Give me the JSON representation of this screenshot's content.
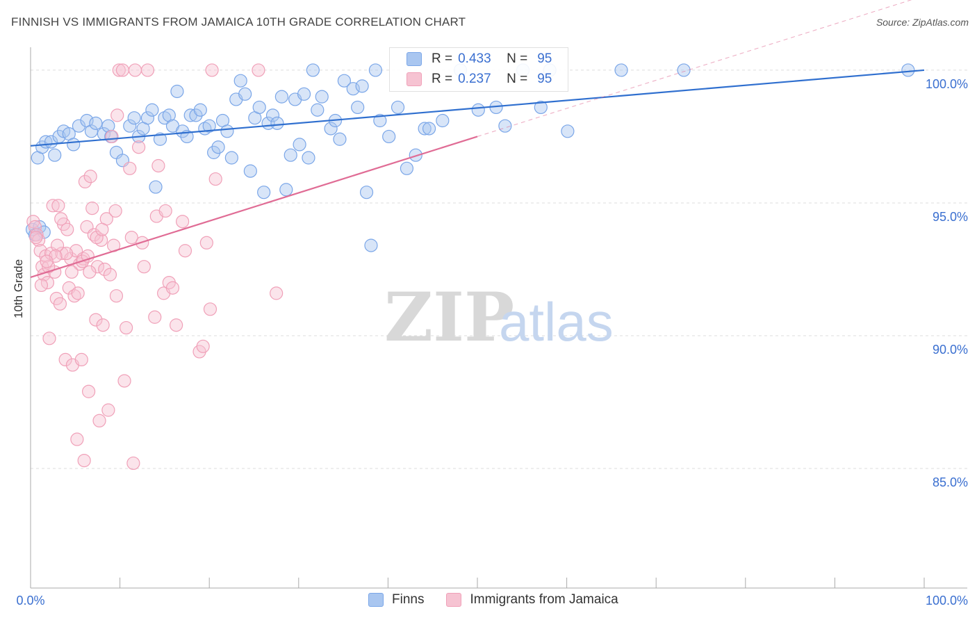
{
  "title": "FINNISH VS IMMIGRANTS FROM JAMAICA 10TH GRADE CORRELATION CHART",
  "source": "Source: ZipAtlas.com",
  "watermark": {
    "zip": "ZIP",
    "atlas": "atlas"
  },
  "legend": {
    "r_label": "R =",
    "n_label": "N =",
    "series": [
      {
        "name": "Finns",
        "r": "0.433",
        "n": "95",
        "color": "#7aa6e8",
        "fill": "#a9c6f0",
        "line": "#2f6fcf"
      },
      {
        "name": "Immigrants from Jamaica",
        "r": "0.237",
        "n": "95",
        "color": "#f0a0b8",
        "fill": "#f6c3d2",
        "line": "#e06c95"
      }
    ]
  },
  "chart_data": {
    "type": "scatter",
    "title": "FINNISH VS IMMIGRANTS FROM JAMAICA 10TH GRADE CORRELATION CHART",
    "xlabel": "",
    "ylabel": "10th Grade",
    "xlim": [
      0,
      100
    ],
    "ylim": [
      80.5,
      100.6
    ],
    "x_tick_labels": [
      "0.0%",
      "100.0%"
    ],
    "y_ticks": [
      85,
      90,
      95,
      100
    ],
    "y_tick_labels": [
      "85.0%",
      "90.0%",
      "95.0%",
      "100.0%"
    ],
    "grid": true,
    "series": [
      {
        "name": "Finns",
        "trend": {
          "x": [
            0,
            100
          ],
          "y": [
            97.15,
            100.0
          ]
        },
        "points": [
          [
            0.8,
            96.7
          ],
          [
            1.3,
            97.1
          ],
          [
            1.7,
            97.3
          ],
          [
            2.3,
            97.3
          ],
          [
            2.7,
            96.8
          ],
          [
            3.2,
            97.5
          ],
          [
            3.7,
            97.7
          ],
          [
            4.3,
            97.6
          ],
          [
            4.8,
            97.2
          ],
          [
            5.4,
            97.9
          ],
          [
            6.3,
            98.1
          ],
          [
            6.8,
            97.7
          ],
          [
            7.3,
            98.0
          ],
          [
            8.2,
            97.6
          ],
          [
            8.7,
            97.9
          ],
          [
            9.0,
            97.5
          ],
          [
            9.6,
            96.9
          ],
          [
            10.3,
            96.6
          ],
          [
            11.1,
            97.9
          ],
          [
            11.6,
            98.2
          ],
          [
            12.1,
            97.5
          ],
          [
            12.6,
            97.8
          ],
          [
            13.1,
            98.2
          ],
          [
            13.6,
            98.5
          ],
          [
            14.0,
            95.6
          ],
          [
            14.5,
            97.4
          ],
          [
            15.0,
            98.2
          ],
          [
            15.5,
            98.3
          ],
          [
            15.9,
            97.9
          ],
          [
            16.4,
            99.2
          ],
          [
            17.0,
            97.7
          ],
          [
            17.5,
            97.5
          ],
          [
            17.9,
            98.3
          ],
          [
            18.5,
            98.3
          ],
          [
            19.0,
            98.5
          ],
          [
            19.5,
            97.8
          ],
          [
            20.0,
            97.9
          ],
          [
            20.5,
            96.9
          ],
          [
            21.0,
            97.1
          ],
          [
            21.5,
            98.1
          ],
          [
            22.0,
            97.7
          ],
          [
            22.5,
            96.7
          ],
          [
            23.0,
            98.9
          ],
          [
            23.5,
            99.6
          ],
          [
            24.0,
            99.1
          ],
          [
            24.6,
            96.2
          ],
          [
            25.1,
            98.2
          ],
          [
            25.6,
            98.6
          ],
          [
            26.1,
            95.4
          ],
          [
            26.6,
            98.0
          ],
          [
            27.1,
            98.3
          ],
          [
            27.6,
            98.0
          ],
          [
            28.1,
            99.0
          ],
          [
            28.6,
            95.5
          ],
          [
            29.1,
            96.8
          ],
          [
            29.6,
            98.9
          ],
          [
            30.1,
            97.2
          ],
          [
            30.6,
            99.1
          ],
          [
            31.1,
            96.7
          ],
          [
            31.6,
            100.0
          ],
          [
            32.1,
            98.5
          ],
          [
            32.6,
            99.0
          ],
          [
            33.6,
            97.8
          ],
          [
            34.1,
            98.1
          ],
          [
            34.6,
            97.4
          ],
          [
            35.1,
            99.6
          ],
          [
            36.1,
            99.3
          ],
          [
            36.6,
            98.6
          ],
          [
            37.1,
            99.4
          ],
          [
            37.6,
            95.4
          ],
          [
            38.1,
            93.4
          ],
          [
            38.6,
            100.0
          ],
          [
            39.1,
            98.1
          ],
          [
            40.1,
            97.5
          ],
          [
            41.1,
            98.6
          ],
          [
            42.1,
            96.3
          ],
          [
            43.1,
            96.8
          ],
          [
            44.1,
            97.8
          ],
          [
            44.6,
            97.8
          ],
          [
            46.1,
            98.1
          ],
          [
            48.1,
            100.0
          ],
          [
            50.1,
            98.5
          ],
          [
            52.1,
            98.6
          ],
          [
            53.1,
            97.9
          ],
          [
            55.1,
            100.0
          ],
          [
            57.1,
            98.6
          ],
          [
            58.1,
            100.0
          ],
          [
            60.1,
            97.7
          ],
          [
            66.1,
            100.0
          ],
          [
            73.1,
            100.0
          ],
          [
            98.2,
            100.0
          ],
          [
            0.2,
            94.0
          ],
          [
            0.5,
            93.8
          ],
          [
            1.0,
            94.1
          ],
          [
            1.5,
            93.9
          ]
        ]
      },
      {
        "name": "Immigrants from Jamaica",
        "trend": {
          "x": [
            0,
            50
          ],
          "y": [
            92.2,
            97.5
          ]
        },
        "trend_extended": {
          "x": [
            50,
            100
          ],
          "y": [
            97.5,
            102.8
          ]
        },
        "points": [
          [
            0.3,
            94.3
          ],
          [
            0.5,
            94.1
          ],
          [
            0.7,
            93.8
          ],
          [
            0.9,
            93.6
          ],
          [
            1.1,
            93.2
          ],
          [
            1.3,
            92.6
          ],
          [
            1.5,
            92.3
          ],
          [
            1.7,
            93.0
          ],
          [
            1.9,
            92.0
          ],
          [
            2.1,
            89.9
          ],
          [
            2.3,
            93.1
          ],
          [
            2.5,
            94.9
          ],
          [
            2.7,
            92.4
          ],
          [
            2.9,
            91.4
          ],
          [
            3.1,
            94.9
          ],
          [
            3.3,
            91.2
          ],
          [
            3.5,
            93.1
          ],
          [
            3.7,
            94.2
          ],
          [
            3.9,
            89.1
          ],
          [
            4.1,
            94.0
          ],
          [
            4.3,
            91.8
          ],
          [
            4.5,
            92.9
          ],
          [
            4.7,
            88.9
          ],
          [
            4.9,
            91.5
          ],
          [
            5.1,
            93.2
          ],
          [
            5.3,
            91.6
          ],
          [
            5.5,
            92.7
          ],
          [
            5.7,
            89.1
          ],
          [
            5.9,
            92.9
          ],
          [
            6.1,
            95.8
          ],
          [
            6.3,
            94.1
          ],
          [
            6.5,
            87.9
          ],
          [
            6.7,
            96.0
          ],
          [
            6.9,
            94.8
          ],
          [
            7.1,
            93.8
          ],
          [
            7.3,
            90.6
          ],
          [
            7.5,
            92.6
          ],
          [
            7.7,
            86.8
          ],
          [
            7.9,
            93.6
          ],
          [
            8.1,
            90.4
          ],
          [
            8.3,
            92.5
          ],
          [
            8.5,
            94.4
          ],
          [
            8.7,
            87.2
          ],
          [
            8.9,
            92.3
          ],
          [
            9.1,
            97.5
          ],
          [
            9.3,
            93.4
          ],
          [
            9.5,
            94.7
          ],
          [
            9.7,
            98.3
          ],
          [
            9.9,
            100.0
          ],
          [
            10.3,
            100.0
          ],
          [
            10.5,
            88.3
          ],
          [
            10.7,
            90.3
          ],
          [
            11.1,
            96.3
          ],
          [
            11.3,
            93.7
          ],
          [
            11.5,
            85.2
          ],
          [
            12.1,
            97.1
          ],
          [
            12.5,
            93.5
          ],
          [
            12.7,
            92.6
          ],
          [
            13.1,
            100.0
          ],
          [
            13.9,
            90.7
          ],
          [
            14.1,
            94.5
          ],
          [
            14.3,
            96.4
          ],
          [
            14.9,
            91.6
          ],
          [
            15.1,
            94.7
          ],
          [
            15.5,
            92.0
          ],
          [
            15.9,
            91.8
          ],
          [
            16.3,
            90.4
          ],
          [
            17.0,
            94.3
          ],
          [
            17.3,
            93.2
          ],
          [
            18.9,
            89.4
          ],
          [
            19.3,
            89.6
          ],
          [
            19.7,
            93.5
          ],
          [
            20.1,
            91.0
          ],
          [
            20.3,
            100.0
          ],
          [
            20.7,
            95.9
          ],
          [
            25.5,
            100.0
          ],
          [
            27.5,
            91.6
          ],
          [
            6.0,
            85.3
          ],
          [
            5.2,
            86.1
          ],
          [
            4.0,
            93.1
          ],
          [
            3.0,
            93.4
          ],
          [
            2.0,
            92.6
          ],
          [
            1.2,
            91.9
          ],
          [
            6.6,
            92.4
          ],
          [
            7.4,
            93.7
          ],
          [
            5.8,
            92.8
          ],
          [
            2.8,
            93.0
          ],
          [
            1.8,
            92.8
          ],
          [
            9.6,
            91.5
          ],
          [
            4.6,
            92.4
          ],
          [
            8.0,
            94.0
          ],
          [
            3.4,
            94.4
          ],
          [
            11.7,
            100.0
          ],
          [
            6.4,
            93.0
          ],
          [
            0.6,
            93.7
          ]
        ]
      }
    ]
  }
}
